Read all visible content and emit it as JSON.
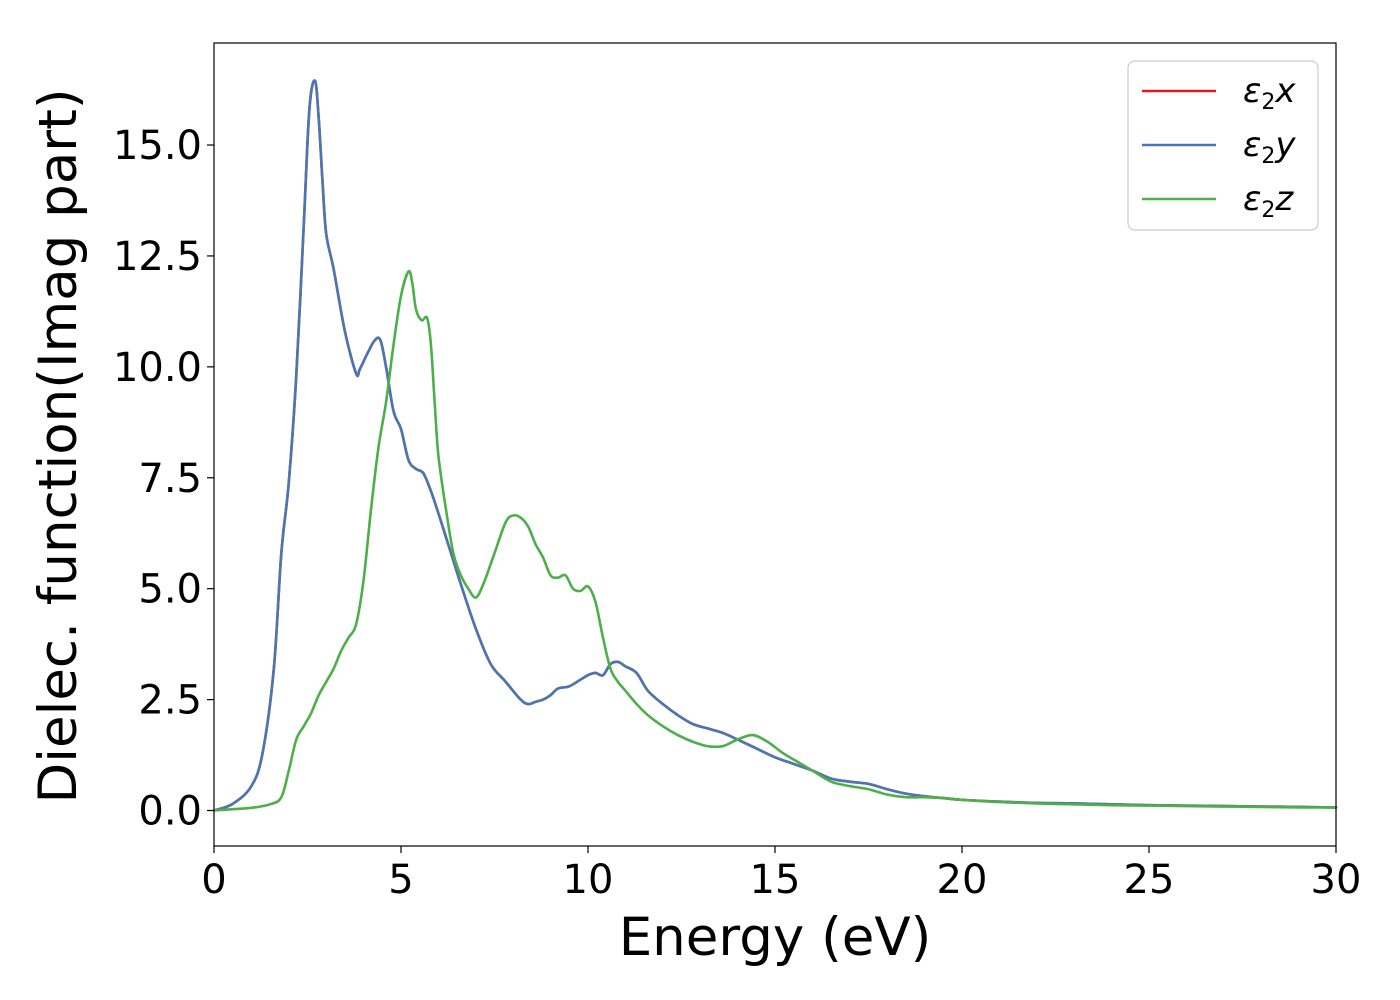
{
  "chart_data": {
    "type": "line",
    "xlabel": "Energy (eV)",
    "ylabel": "Dielec. function(Imag part)",
    "xlim": [
      0,
      30
    ],
    "ylim": [
      -0.8,
      17.3
    ],
    "xticks": [
      0,
      5,
      10,
      15,
      20,
      25,
      30
    ],
    "xtick_labels": [
      "0",
      "5",
      "10",
      "15",
      "20",
      "25",
      "30"
    ],
    "yticks": [
      0,
      2.5,
      5,
      7.5,
      10,
      12.5,
      15
    ],
    "ytick_labels": [
      "0.0",
      "2.5",
      "5.0",
      "7.5",
      "10.0",
      "12.5",
      "15.0"
    ],
    "grid": false,
    "legend_position": "top-right",
    "series": [
      {
        "name": "ε2x",
        "legend_main": "ε",
        "legend_sub": "2",
        "legend_tail": "x",
        "color": "#e41a1c",
        "x": [
          0,
          0.5,
          1.0,
          1.3,
          1.6,
          1.8,
          2.0,
          2.2,
          2.4,
          2.55,
          2.7,
          2.8,
          2.9,
          3.0,
          3.2,
          3.5,
          3.8,
          3.9,
          4.1,
          4.3,
          4.45,
          4.6,
          4.8,
          5.0,
          5.2,
          5.4,
          5.6,
          5.8,
          6.0,
          6.3,
          6.6,
          7.0,
          7.4,
          7.8,
          8.2,
          8.4,
          8.6,
          8.8,
          9.0,
          9.2,
          9.5,
          9.8,
          10.0,
          10.2,
          10.4,
          10.6,
          10.8,
          11.0,
          11.3,
          11.6,
          12.0,
          12.4,
          12.8,
          13.2,
          13.6,
          14.0,
          14.5,
          15.0,
          15.5,
          16.0,
          16.5,
          17.0,
          17.5,
          18.0,
          18.5,
          19.0,
          19.5,
          20.0,
          21.0,
          22.0,
          23.0,
          24.0,
          25.0,
          26.0,
          27.0,
          28.0,
          29.0,
          30.0
        ],
        "y": [
          0,
          0.15,
          0.55,
          1.3,
          3.2,
          5.8,
          7.4,
          9.8,
          13.2,
          15.8,
          16.45,
          15.6,
          14.2,
          13.0,
          12.2,
          10.8,
          9.85,
          9.95,
          10.3,
          10.6,
          10.6,
          10.0,
          9.0,
          8.6,
          7.9,
          7.7,
          7.6,
          7.2,
          6.7,
          5.9,
          5.1,
          4.1,
          3.3,
          2.9,
          2.5,
          2.4,
          2.45,
          2.5,
          2.6,
          2.75,
          2.8,
          2.95,
          3.05,
          3.1,
          3.05,
          3.3,
          3.35,
          3.25,
          3.1,
          2.7,
          2.4,
          2.15,
          1.95,
          1.85,
          1.75,
          1.6,
          1.4,
          1.2,
          1.05,
          0.9,
          0.72,
          0.65,
          0.6,
          0.48,
          0.38,
          0.32,
          0.28,
          0.24,
          0.2,
          0.17,
          0.16,
          0.14,
          0.12,
          0.11,
          0.1,
          0.09,
          0.08,
          0.07
        ]
      },
      {
        "name": "ε2y",
        "legend_main": "ε",
        "legend_sub": "2",
        "legend_tail": "y",
        "color": "#4878b3",
        "x": [
          0,
          0.5,
          1.0,
          1.3,
          1.6,
          1.8,
          2.0,
          2.2,
          2.4,
          2.55,
          2.7,
          2.8,
          2.9,
          3.0,
          3.2,
          3.5,
          3.8,
          3.9,
          4.1,
          4.3,
          4.45,
          4.6,
          4.8,
          5.0,
          5.2,
          5.4,
          5.6,
          5.8,
          6.0,
          6.3,
          6.6,
          7.0,
          7.4,
          7.8,
          8.2,
          8.4,
          8.6,
          8.8,
          9.0,
          9.2,
          9.5,
          9.8,
          10.0,
          10.2,
          10.4,
          10.6,
          10.8,
          11.0,
          11.3,
          11.6,
          12.0,
          12.4,
          12.8,
          13.2,
          13.6,
          14.0,
          14.5,
          15.0,
          15.5,
          16.0,
          16.5,
          17.0,
          17.5,
          18.0,
          18.5,
          19.0,
          19.5,
          20.0,
          21.0,
          22.0,
          23.0,
          24.0,
          25.0,
          26.0,
          27.0,
          28.0,
          29.0,
          30.0
        ],
        "y": [
          0,
          0.15,
          0.55,
          1.3,
          3.2,
          5.8,
          7.4,
          9.8,
          13.2,
          15.8,
          16.45,
          15.6,
          14.2,
          13.0,
          12.2,
          10.8,
          9.85,
          9.95,
          10.3,
          10.6,
          10.6,
          10.0,
          9.0,
          8.6,
          7.9,
          7.7,
          7.6,
          7.2,
          6.7,
          5.9,
          5.1,
          4.1,
          3.3,
          2.9,
          2.5,
          2.4,
          2.45,
          2.5,
          2.6,
          2.75,
          2.8,
          2.95,
          3.05,
          3.1,
          3.05,
          3.3,
          3.35,
          3.25,
          3.1,
          2.7,
          2.4,
          2.15,
          1.95,
          1.85,
          1.75,
          1.6,
          1.4,
          1.2,
          1.05,
          0.9,
          0.72,
          0.65,
          0.6,
          0.48,
          0.38,
          0.32,
          0.28,
          0.24,
          0.2,
          0.17,
          0.16,
          0.14,
          0.12,
          0.11,
          0.1,
          0.09,
          0.08,
          0.07
        ]
      },
      {
        "name": "ε2z",
        "legend_main": "ε",
        "legend_sub": "2",
        "legend_tail": "z",
        "color": "#4daf4a",
        "x": [
          0,
          0.5,
          1.0,
          1.5,
          1.8,
          2.0,
          2.2,
          2.4,
          2.6,
          2.8,
          3.0,
          3.2,
          3.4,
          3.6,
          3.8,
          4.0,
          4.2,
          4.4,
          4.6,
          4.8,
          5.0,
          5.2,
          5.3,
          5.4,
          5.55,
          5.7,
          5.8,
          5.9,
          6.0,
          6.2,
          6.4,
          6.6,
          6.8,
          7.0,
          7.2,
          7.5,
          7.8,
          8.0,
          8.2,
          8.4,
          8.6,
          8.8,
          9.0,
          9.2,
          9.4,
          9.6,
          9.8,
          10.0,
          10.2,
          10.4,
          10.6,
          10.8,
          11.0,
          11.3,
          11.6,
          12.0,
          12.4,
          12.8,
          13.2,
          13.6,
          14.0,
          14.4,
          14.8,
          15.2,
          15.6,
          16.0,
          16.5,
          17.0,
          17.5,
          18.0,
          18.5,
          19.0,
          19.5,
          20.0,
          21.0,
          22.0,
          23.0,
          24.0,
          25.0,
          26.0,
          27.0,
          28.0,
          29.0,
          30.0
        ],
        "y": [
          0,
          0.03,
          0.06,
          0.14,
          0.3,
          0.9,
          1.6,
          1.9,
          2.2,
          2.6,
          2.9,
          3.2,
          3.6,
          3.9,
          4.2,
          5.2,
          6.8,
          8.2,
          9.2,
          10.5,
          11.6,
          12.15,
          11.9,
          11.3,
          11.05,
          11.1,
          10.5,
          9.2,
          8.0,
          6.8,
          5.8,
          5.3,
          5.0,
          4.8,
          5.1,
          5.8,
          6.5,
          6.65,
          6.6,
          6.4,
          6.0,
          5.7,
          5.3,
          5.25,
          5.3,
          5.0,
          4.95,
          5.05,
          4.7,
          3.9,
          3.2,
          2.9,
          2.7,
          2.4,
          2.15,
          1.9,
          1.7,
          1.55,
          1.45,
          1.45,
          1.6,
          1.7,
          1.55,
          1.3,
          1.1,
          0.9,
          0.65,
          0.55,
          0.48,
          0.36,
          0.3,
          0.3,
          0.28,
          0.24,
          0.19,
          0.16,
          0.14,
          0.12,
          0.11,
          0.1,
          0.09,
          0.08,
          0.07,
          0.07
        ]
      }
    ]
  }
}
